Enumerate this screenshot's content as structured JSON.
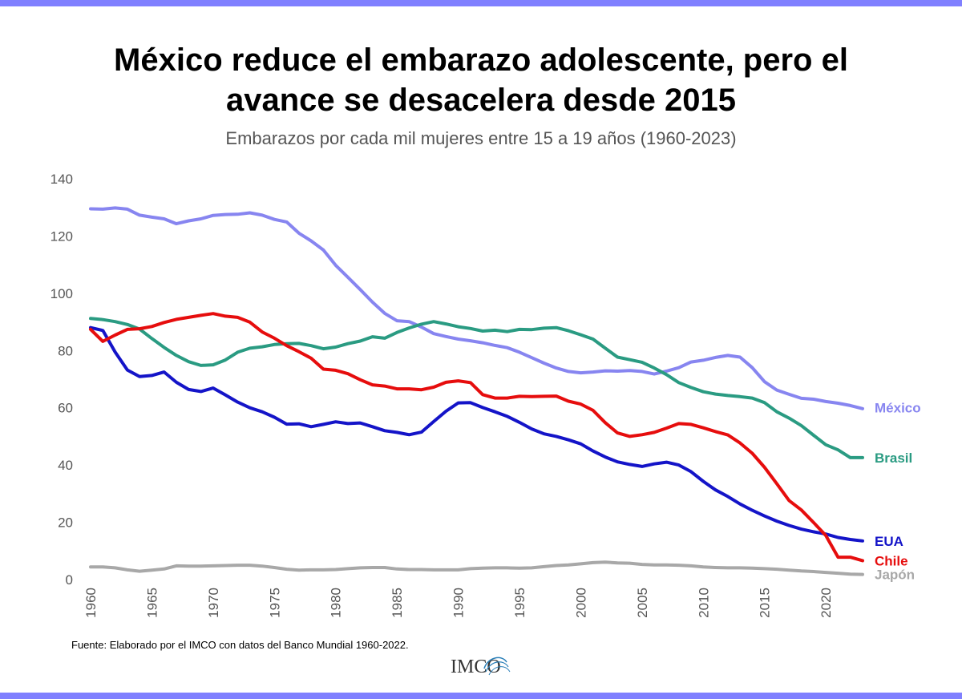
{
  "colors": {
    "band": "#8080ff",
    "mexico": "#8785f0",
    "brasil": "#2a9b82",
    "eua": "#1414c8",
    "chile": "#e60d0d",
    "japon": "#a8a8a8",
    "tick": "#555555"
  },
  "header": {
    "title_line1": "México reduce el embarazo adolescente, pero el",
    "title_line2": "avance se desacelera desde 2015",
    "subtitle": "Embarazos por cada mil mujeres entre 15 a 19 años (1960-2023)"
  },
  "footer": {
    "source": "Fuente: Elaborado por el IMCO con datos del Banco Mundial 1960-2022.",
    "logo_text": "IMCO"
  },
  "chart_data": {
    "type": "line",
    "title": "",
    "xlabel": "",
    "ylabel": "",
    "xlim": [
      1960,
      2023
    ],
    "ylim": [
      0,
      140
    ],
    "grid": false,
    "legend": "direct labels at line ends (right)",
    "x_ticks": [
      "1960",
      "1965",
      "1970",
      "1975",
      "1980",
      "1985",
      "1990",
      "1995",
      "2000",
      "2005",
      "2010",
      "2015",
      "2020"
    ],
    "y_ticks": [
      "0",
      "20",
      "40",
      "60",
      "80",
      "100",
      "120",
      "140"
    ],
    "x": [
      1960,
      1961,
      1962,
      1963,
      1964,
      1965,
      1966,
      1967,
      1968,
      1969,
      1970,
      1971,
      1972,
      1973,
      1974,
      1975,
      1976,
      1977,
      1978,
      1979,
      1980,
      1981,
      1982,
      1983,
      1984,
      1985,
      1986,
      1987,
      1988,
      1989,
      1990,
      1991,
      1992,
      1993,
      1994,
      1995,
      1996,
      1997,
      1998,
      1999,
      2000,
      2001,
      2002,
      2003,
      2004,
      2005,
      2006,
      2007,
      2008,
      2009,
      2010,
      2011,
      2012,
      2013,
      2014,
      2015,
      2016,
      2017,
      2018,
      2019,
      2020,
      2021,
      2022,
      2023
    ],
    "series": [
      {
        "name": "México",
        "color_key": "mexico",
        "values": [
          129.5,
          129.4,
          129.8,
          129.4,
          127.3,
          126.6,
          126.0,
          124.3,
          125.3,
          126.0,
          127.2,
          127.5,
          127.6,
          128.1,
          127.3,
          125.8,
          124.9,
          121.0,
          118.3,
          115.1,
          109.8,
          105.6,
          101.3,
          96.9,
          93.0,
          90.4,
          90.1,
          88.2,
          85.9,
          84.9,
          84.0,
          83.4,
          82.7,
          81.8,
          81.0,
          79.4,
          77.5,
          75.6,
          73.9,
          72.7,
          72.2,
          72.5,
          72.9,
          72.8,
          73.0,
          72.7,
          71.8,
          72.8,
          74.0,
          76.0,
          76.6,
          77.6,
          78.3,
          77.7,
          74.0,
          69.1,
          66.2,
          64.7,
          63.3,
          63.0,
          62.2,
          61.6,
          60.8,
          59.7
        ]
      },
      {
        "name": "Brasil",
        "color_key": "brasil",
        "values": [
          91.2,
          90.8,
          90.1,
          89.1,
          87.5,
          84.2,
          81.1,
          78.3,
          76.1,
          74.8,
          75.0,
          76.7,
          79.4,
          80.8,
          81.3,
          82.1,
          82.4,
          82.5,
          81.7,
          80.6,
          81.2,
          82.4,
          83.3,
          84.8,
          84.3,
          86.3,
          87.9,
          89.2,
          90.1,
          89.3,
          88.3,
          87.7,
          86.8,
          87.1,
          86.6,
          87.4,
          87.3,
          87.8,
          88.0,
          86.9,
          85.5,
          84.0,
          80.8,
          77.7,
          76.8,
          75.9,
          73.9,
          71.6,
          68.8,
          67.1,
          65.6,
          64.8,
          64.3,
          63.9,
          63.4,
          61.8,
          58.6,
          56.4,
          53.8,
          50.4,
          47.1,
          45.3,
          42.6,
          42.6
        ]
      },
      {
        "name": "EUA",
        "color_key": "eua",
        "values": [
          88.0,
          87.0,
          79.5,
          73.2,
          70.9,
          71.3,
          72.5,
          68.9,
          66.4,
          65.7,
          66.9,
          64.5,
          62.0,
          60.0,
          58.6,
          56.7,
          54.3,
          54.4,
          53.4,
          54.2,
          55.1,
          54.5,
          54.7,
          53.4,
          52.0,
          51.4,
          50.6,
          51.5,
          55.2,
          58.8,
          61.7,
          61.8,
          60.1,
          58.6,
          57.0,
          54.9,
          52.6,
          50.9,
          50.0,
          48.8,
          47.4,
          44.9,
          42.8,
          41.1,
          40.2,
          39.5,
          40.4,
          41.0,
          40.0,
          37.7,
          34.3,
          31.3,
          29.0,
          26.4,
          24.2,
          22.2,
          20.4,
          18.9,
          17.6,
          16.7,
          15.9,
          14.7,
          14.0,
          13.5
        ]
      },
      {
        "name": "Chile",
        "color_key": "chile",
        "values": [
          87.4,
          83.2,
          85.4,
          87.4,
          87.6,
          88.4,
          89.8,
          90.9,
          91.6,
          92.3,
          92.9,
          92.0,
          91.6,
          89.9,
          86.5,
          84.3,
          81.7,
          79.6,
          77.3,
          73.5,
          73.1,
          71.9,
          69.8,
          68.0,
          67.6,
          66.6,
          66.6,
          66.3,
          67.2,
          68.9,
          69.4,
          68.8,
          64.6,
          63.4,
          63.4,
          64.0,
          63.9,
          64.0,
          64.1,
          62.3,
          61.3,
          59.1,
          54.8,
          51.2,
          50.0,
          50.6,
          51.4,
          52.9,
          54.5,
          54.2,
          53.0,
          51.7,
          50.5,
          47.7,
          44.1,
          39.2,
          33.5,
          27.6,
          24.3,
          19.9,
          15.4,
          7.8,
          7.8,
          6.6
        ]
      },
      {
        "name": "Japón",
        "color_key": "japon",
        "values": [
          4.4,
          4.4,
          4.1,
          3.4,
          2.9,
          3.3,
          3.7,
          4.8,
          4.7,
          4.7,
          4.8,
          4.9,
          5.0,
          5.0,
          4.7,
          4.2,
          3.6,
          3.3,
          3.4,
          3.4,
          3.5,
          3.8,
          4.1,
          4.2,
          4.2,
          3.7,
          3.5,
          3.5,
          3.4,
          3.4,
          3.4,
          3.8,
          4.0,
          4.1,
          4.1,
          4.0,
          4.1,
          4.5,
          4.9,
          5.1,
          5.5,
          5.9,
          6.1,
          5.8,
          5.7,
          5.3,
          5.1,
          5.1,
          5.0,
          4.8,
          4.4,
          4.2,
          4.1,
          4.1,
          4.0,
          3.8,
          3.6,
          3.3,
          3.0,
          2.8,
          2.5,
          2.2,
          1.9,
          1.8
        ]
      }
    ]
  }
}
